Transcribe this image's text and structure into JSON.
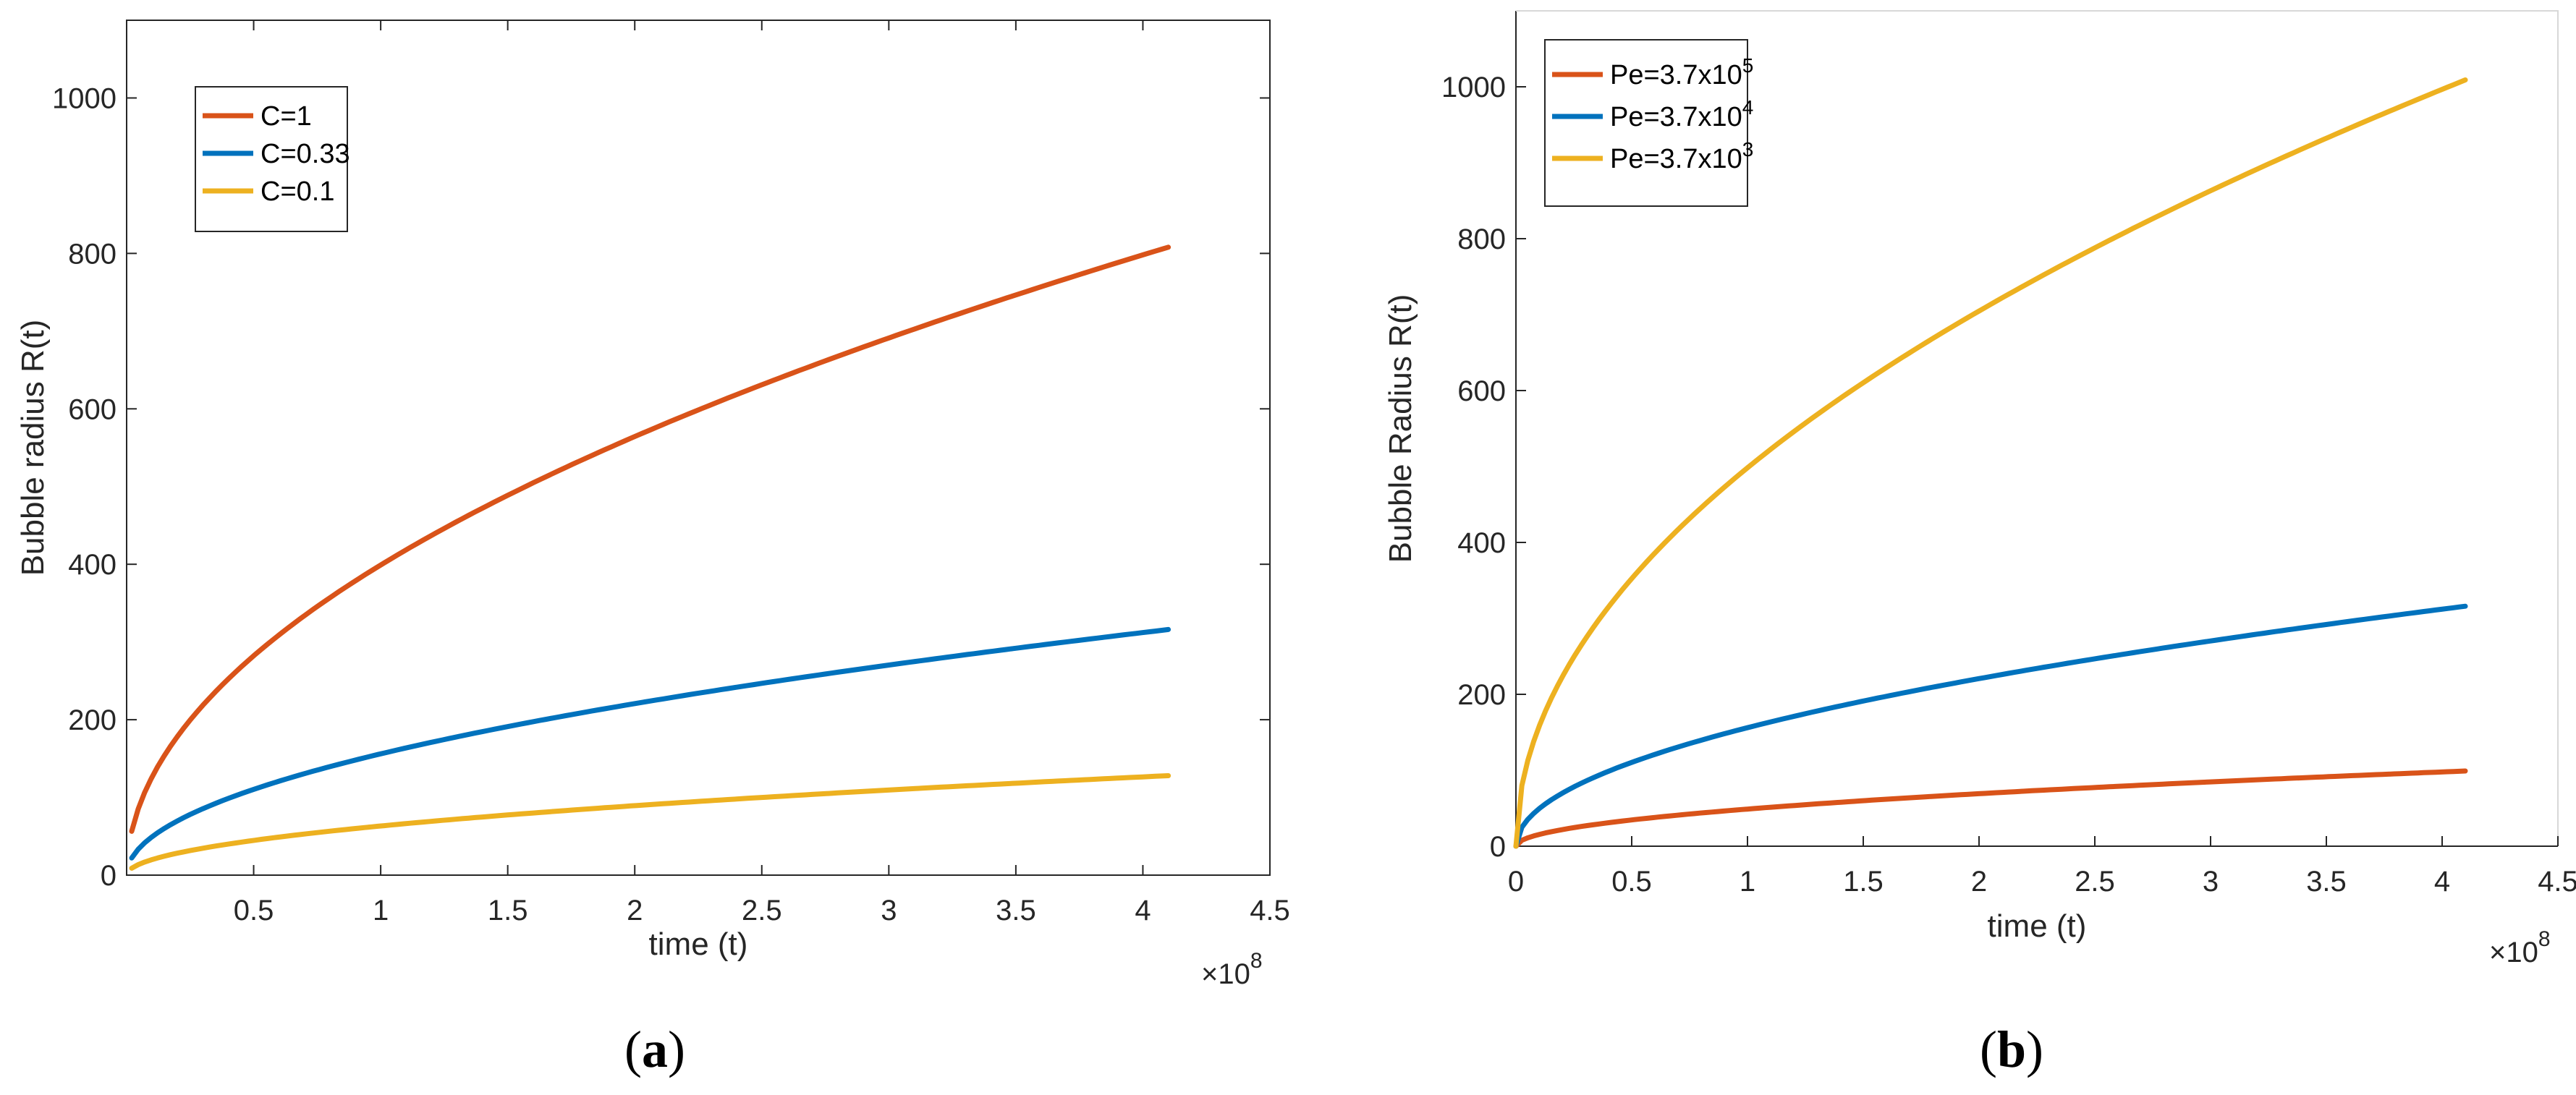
{
  "chart_data": [
    {
      "type": "line",
      "panel_label_open": "(",
      "panel_label_letter": "a",
      "panel_label_close": ")",
      "xlabel": "time (t)",
      "ylabel": "Bubble radius R(t)",
      "x_multiplier": "×10",
      "x_multiplier_exp": "8",
      "xlim": [
        0,
        4.5
      ],
      "ylim": [
        0,
        1100
      ],
      "xticks": [
        0.5,
        1,
        1.5,
        2,
        2.5,
        3,
        3.5,
        4,
        4.5
      ],
      "xtick_labels": [
        "0.5",
        "1",
        "1.5",
        "2",
        "2.5",
        "3",
        "3.5",
        "4",
        "4.5"
      ],
      "yticks": [
        0,
        200,
        400,
        600,
        800,
        1000
      ],
      "ytick_labels": [
        "0",
        "200",
        "400",
        "600",
        "800",
        "1000"
      ],
      "legend_position": "top-left",
      "series": [
        {
          "name": "C=1",
          "label": "C=1",
          "color": "#D95319",
          "x_end": 4.1,
          "y_end": 808,
          "exponent": 0.5,
          "x0": 0.02
        },
        {
          "name": "C=0.33",
          "label": "C=0.33",
          "color": "#0072BD",
          "x_end": 4.1,
          "y_end": 316,
          "exponent": 0.5,
          "x0": 0.02
        },
        {
          "name": "C=0.1",
          "label": "C=0.1",
          "color": "#EDB120",
          "x_end": 4.1,
          "y_end": 128,
          "exponent": 0.5,
          "x0": 0.02
        }
      ]
    },
    {
      "type": "line",
      "panel_label_open": "(",
      "panel_label_letter": "b",
      "panel_label_close": ")",
      "xlabel": "time (t)",
      "ylabel": "Bubble Radius R(t)",
      "x_multiplier": "×10",
      "x_multiplier_exp": "8",
      "xlim": [
        0,
        4.5
      ],
      "ylim": [
        0,
        1100
      ],
      "xticks": [
        0,
        0.5,
        1,
        1.5,
        2,
        2.5,
        3,
        3.5,
        4,
        4.5
      ],
      "xtick_labels": [
        "0",
        "0.5",
        "1",
        "1.5",
        "2",
        "2.5",
        "3",
        "3.5",
        "4",
        "4.5"
      ],
      "yticks": [
        0,
        200,
        400,
        600,
        800,
        1000
      ],
      "ytick_labels": [
        "0",
        "200",
        "400",
        "600",
        "800",
        "1000"
      ],
      "legend_position": "top-left",
      "series": [
        {
          "name": "Pe=3.7x10^5",
          "label_base": "Pe=3.7x10",
          "label_exp": "5",
          "color": "#D95319",
          "x_end": 4.1,
          "y_end": 99,
          "exponent": 0.5,
          "x0": 0.0
        },
        {
          "name": "Pe=3.7x10^4",
          "label_base": "Pe=3.7x10",
          "label_exp": "4",
          "color": "#0072BD",
          "x_end": 4.1,
          "y_end": 316,
          "exponent": 0.5,
          "x0": 0.0
        },
        {
          "name": "Pe=3.7x10^3",
          "label_base": "Pe=3.7x10",
          "label_exp": "3",
          "color": "#EDB120",
          "x_end": 4.1,
          "y_end": 1009,
          "exponent": 0.5,
          "x0": 0.0
        }
      ]
    }
  ]
}
